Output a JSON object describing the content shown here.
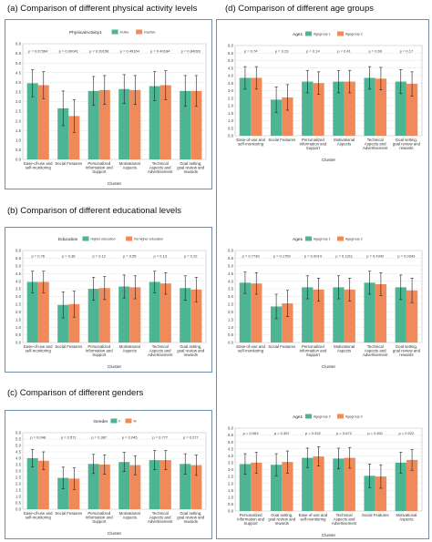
{
  "sections": {
    "a": "(a) Comparison of different physical activity levels",
    "b": "(b) Comparison of different educational levels",
    "c": "(c) Comparison of different genders",
    "d": "(d) Comparison of different age groups"
  },
  "colors": {
    "group1": "#4db594",
    "group2": "#f08a5b",
    "frame": "#6f8faf"
  },
  "chart_data": [
    {
      "id": "a",
      "type": "bar",
      "xlabel": "Cluster",
      "ylabel": "",
      "ylim": [
        0,
        6.0
      ],
      "y_ticks": [
        "0.0",
        "0.5",
        "1.0",
        "1.5",
        "2.0",
        "2.5",
        "3.0",
        "3.5",
        "4.0",
        "4.5",
        "5.0",
        "5.5",
        "6.0"
      ],
      "legend_title": "PhysicalActivity1",
      "legend_position": "top",
      "categories": [
        [
          "Ease-of-use and",
          "self-monitoring"
        ],
        [
          "Social Features"
        ],
        [
          "Personalized",
          "Information and",
          "Support"
        ],
        [
          "Motivational",
          "Aspects"
        ],
        [
          "Technical",
          "Aspects and",
          "Advertisement"
        ],
        [
          "Goal setting,",
          "goal review and",
          "rewards"
        ]
      ],
      "pvalues": [
        "p = 0.67364",
        "p = 0.00041",
        "p = 0.39158",
        "p = 0.49164",
        "p = 0.40184",
        "p = 0.84283"
      ],
      "series": [
        {
          "name": "Active",
          "values": [
            3.95,
            2.65,
            3.55,
            3.65,
            3.8,
            3.55
          ],
          "err": [
            0.7,
            0.9,
            0.75,
            0.75,
            0.75,
            0.8
          ]
        },
        {
          "name": "Inactive",
          "values": [
            3.85,
            2.25,
            3.6,
            3.6,
            3.85,
            3.55
          ],
          "err": [
            0.7,
            0.85,
            0.75,
            0.75,
            0.75,
            0.8
          ]
        }
      ]
    },
    {
      "id": "b",
      "type": "bar",
      "xlabel": "Cluster",
      "ylabel": "",
      "ylim": [
        0,
        6.0
      ],
      "y_ticks": [
        "0.0",
        "0.5",
        "1.0",
        "1.5",
        "2.0",
        "2.5",
        "3.0",
        "3.5",
        "4.0",
        "4.5",
        "5.0",
        "5.5",
        "6.0"
      ],
      "legend_title": "Education",
      "legend_position": "top",
      "categories": [
        [
          "Ease-of-use and",
          "self-monitoring"
        ],
        [
          "Social Features"
        ],
        [
          "Personalized",
          "Information and",
          "Support"
        ],
        [
          "Motivational",
          "Aspects"
        ],
        [
          "Technical",
          "Aspects and",
          "Advertisement"
        ],
        [
          "Goal setting,",
          "goal review and",
          "rewards"
        ]
      ],
      "pvalues": [
        "p = 0.76",
        "p = 0.36",
        "p = 0.12",
        "p = 0.55",
        "p = 0.13",
        "p = 0.22"
      ],
      "series": [
        {
          "name": "Higher education",
          "values": [
            3.95,
            2.45,
            3.5,
            3.65,
            3.95,
            3.55
          ],
          "err": [
            0.7,
            0.85,
            0.75,
            0.75,
            0.7,
            0.8
          ]
        },
        {
          "name": "No higher education",
          "values": [
            3.95,
            2.5,
            3.55,
            3.6,
            3.85,
            3.45
          ],
          "err": [
            0.7,
            0.85,
            0.75,
            0.75,
            0.7,
            0.8
          ]
        }
      ]
    },
    {
      "id": "c",
      "type": "bar",
      "xlabel": "Cluster",
      "ylabel": "",
      "ylim": [
        0,
        6.0
      ],
      "y_ticks": [
        "0.0",
        "0.5",
        "1.0",
        "1.5",
        "2.0",
        "2.5",
        "3.0",
        "3.5",
        "4.0",
        "4.5",
        "5.0",
        "5.5",
        "6.0"
      ],
      "legend_title": "Gender",
      "legend_position": "top",
      "categories": [
        [
          "Ease-of-use and",
          "self-monitoring"
        ],
        [
          "Social Features"
        ],
        [
          "Personalized",
          "Information and",
          "Support"
        ],
        [
          "Motivational",
          "Aspects"
        ],
        [
          "Technical",
          "Aspects and",
          "Advertisement"
        ],
        [
          "Goal setting,",
          "goal review and",
          "rewards"
        ]
      ],
      "pvalues": [
        "p = 0.048",
        "p = 0.571",
        "p = 0.387",
        "p = 0.045",
        "p = 0.777",
        "p = 0.277"
      ],
      "series": [
        {
          "name": "F",
          "values": [
            4.0,
            2.45,
            3.55,
            3.7,
            3.85,
            3.55
          ],
          "err": [
            0.7,
            0.85,
            0.75,
            0.75,
            0.75,
            0.8
          ]
        },
        {
          "name": "M",
          "values": [
            3.8,
            2.4,
            3.5,
            3.45,
            3.85,
            3.45
          ],
          "err": [
            0.7,
            0.85,
            0.75,
            0.75,
            0.75,
            0.8
          ]
        }
      ]
    },
    {
      "id": "d1",
      "type": "bar",
      "xlabel": "Cluster",
      "ylabel": "",
      "ylim": [
        0,
        6.0
      ],
      "y_ticks": [
        "0.0",
        "0.5",
        "1.0",
        "1.5",
        "2.0",
        "2.5",
        "3.0",
        "3.5",
        "4.0",
        "4.5",
        "5.0",
        "5.5",
        "6.0"
      ],
      "legend_title": "Age1",
      "legend_position": "top",
      "categories": [
        [
          "Ease-of-use and",
          "self-monitoring"
        ],
        [
          "Social Features"
        ],
        [
          "Personalized",
          "Information and",
          "Support"
        ],
        [
          "Motivational",
          "Aspects"
        ],
        [
          "Technical",
          "Aspects and",
          "Advertisement"
        ],
        [
          "Goal setting,",
          "goal review and",
          "rewards"
        ]
      ],
      "pvalues": [
        "p = 0.74",
        "p = 0.23",
        "p = 0.14",
        "p = 0.41",
        "p = 0.69",
        "p = 0.17"
      ],
      "series": [
        {
          "name": "Agegroup 1",
          "values": [
            3.85,
            2.4,
            3.6,
            3.6,
            3.85,
            3.6
          ],
          "err": [
            0.75,
            0.85,
            0.75,
            0.75,
            0.75,
            0.8
          ]
        },
        {
          "name": "Agegroup 2",
          "values": [
            3.85,
            2.55,
            3.5,
            3.6,
            3.8,
            3.45
          ],
          "err": [
            0.75,
            0.85,
            0.75,
            0.75,
            0.75,
            0.8
          ]
        }
      ]
    },
    {
      "id": "d2",
      "type": "bar",
      "xlabel": "Cluster",
      "ylabel": "",
      "ylim": [
        0,
        6.0
      ],
      "y_ticks": [
        "0.0",
        "0.5",
        "1.0",
        "1.5",
        "2.0",
        "2.5",
        "3.0",
        "3.5",
        "4.0",
        "4.5",
        "5.0",
        "5.5",
        "6.0"
      ],
      "legend_title": "Age1",
      "legend_position": "top",
      "categories": [
        [
          "Ease-of-use and",
          "self-monitoring"
        ],
        [
          "Social Features"
        ],
        [
          "Personalized",
          "Information and",
          "Support"
        ],
        [
          "Motivational",
          "Aspects"
        ],
        [
          "Technical",
          "Aspects and",
          "Advertisement"
        ],
        [
          "Goal setting,",
          "goal review and",
          "rewards"
        ]
      ],
      "pvalues": [
        "p = 0.7739",
        "p = 0.1759",
        "p = 0.0014",
        "p = 0.1311",
        "p = 0.4342",
        "p = 0.0343"
      ],
      "series": [
        {
          "name": "Agegroup 1",
          "values": [
            3.9,
            2.35,
            3.6,
            3.6,
            3.9,
            3.6
          ],
          "err": [
            0.7,
            0.8,
            0.75,
            0.75,
            0.75,
            0.8
          ]
        },
        {
          "name": "Agegroup 2",
          "values": [
            3.85,
            2.55,
            3.45,
            3.45,
            3.8,
            3.4
          ],
          "err": [
            0.7,
            0.85,
            0.75,
            0.75,
            0.75,
            0.8
          ]
        }
      ]
    },
    {
      "id": "d3",
      "type": "bar",
      "xlabel": "Cluster",
      "ylabel": "",
      "ylim": [
        0,
        6.0
      ],
      "y_ticks": [
        "0.0",
        "0.5",
        "1.0",
        "1.5",
        "2.0",
        "2.5",
        "3.0",
        "3.5",
        "4.0",
        "4.5",
        "5.0",
        "5.5",
        "6.0"
      ],
      "legend_title": "Age1",
      "legend_position": "top",
      "categories": [
        [
          "Personalized",
          "Information and",
          "Support"
        ],
        [
          "Goal setting,",
          "goal review and",
          "rewards"
        ],
        [
          "Ease-of-use and",
          "self-monitoring"
        ],
        [
          "Technical",
          "Aspects and",
          "Advertisement"
        ],
        [
          "Social Features"
        ],
        [
          "Motivational",
          "Aspects"
        ]
      ],
      "pvalues": [
        "p = 0.063",
        "p = 0.357",
        "p = 0.532",
        "p = 0.672",
        "p = 0.831",
        "p = 0.022"
      ],
      "series": [
        {
          "name": "Agegroup 2",
          "values": [
            3.4,
            3.35,
            3.85,
            3.8,
            2.55,
            3.5
          ],
          "err": [
            0.75,
            0.8,
            0.7,
            0.75,
            0.85,
            0.75
          ]
        },
        {
          "name": "Agegroup 3",
          "values": [
            3.5,
            3.55,
            3.95,
            3.85,
            2.5,
            3.7
          ],
          "err": [
            0.75,
            0.8,
            0.7,
            0.75,
            0.85,
            0.75
          ]
        }
      ]
    }
  ]
}
